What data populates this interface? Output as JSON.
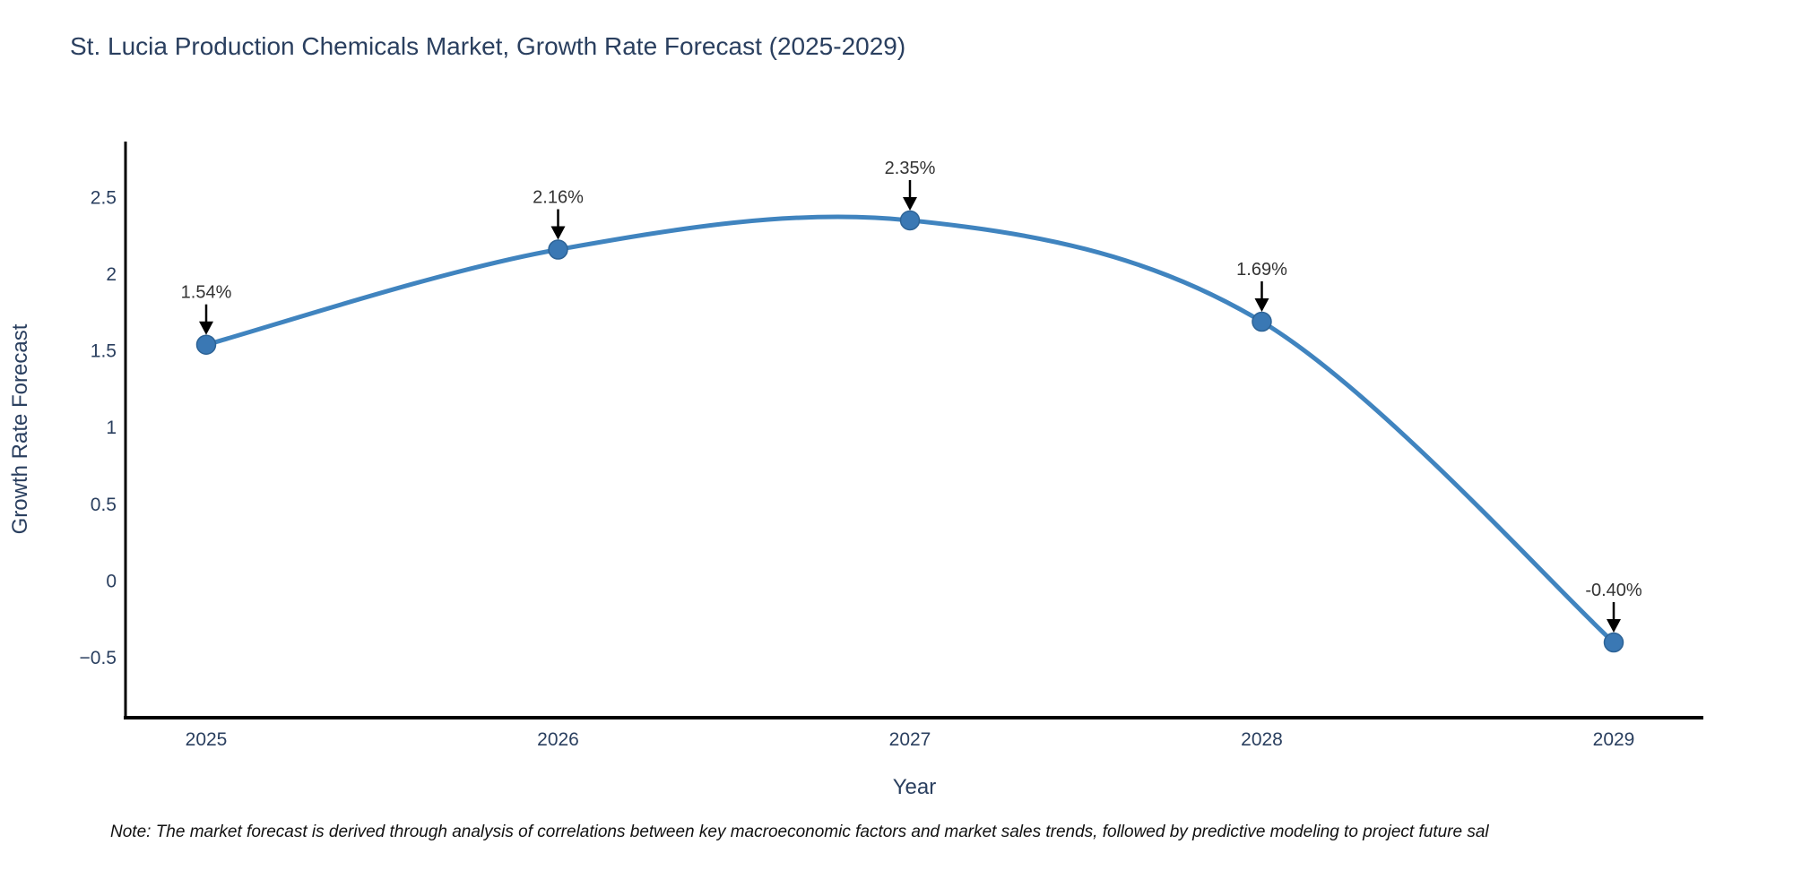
{
  "title": "St. Lucia Production Chemicals Market, Growth Rate Forecast (2025-2029)",
  "note": "Note: The market forecast is derived through analysis of correlations between key macroeconomic factors and market sales trends, followed by predictive modeling to project future sal",
  "colors": {
    "line": "#4084bf",
    "marker_fill": "#3a78b4",
    "marker_edge": "#2d6396",
    "axis_line": "#000000",
    "text": "#2a3f5f",
    "annotation_text": "#333333",
    "arrow": "#000000",
    "background": "#ffffff"
  },
  "chart_data": {
    "type": "line",
    "line_shape": "spline",
    "grid": false,
    "legend_visible": false,
    "title": "St. Lucia Production Chemicals Market, Growth Rate Forecast (2025-2029)",
    "xlabel": "Year",
    "ylabel": "Growth Rate Forecast",
    "x": [
      2025,
      2026,
      2027,
      2028,
      2029
    ],
    "xtick_labels": [
      "2025",
      "2026",
      "2027",
      "2028",
      "2029"
    ],
    "values": [
      1.54,
      2.16,
      2.35,
      1.69,
      -0.4
    ],
    "point_labels": [
      "1.54%",
      "2.16%",
      "2.35%",
      "1.69%",
      "-0.40%"
    ],
    "yticks": [
      2.5,
      2,
      1.5,
      1,
      0.5,
      0,
      -0.5
    ],
    "ytick_labels": [
      "2.5",
      "2",
      "1.5",
      "1",
      "0.5",
      "0",
      "−0.5"
    ],
    "ylim": [
      -0.88,
      2.86
    ]
  }
}
